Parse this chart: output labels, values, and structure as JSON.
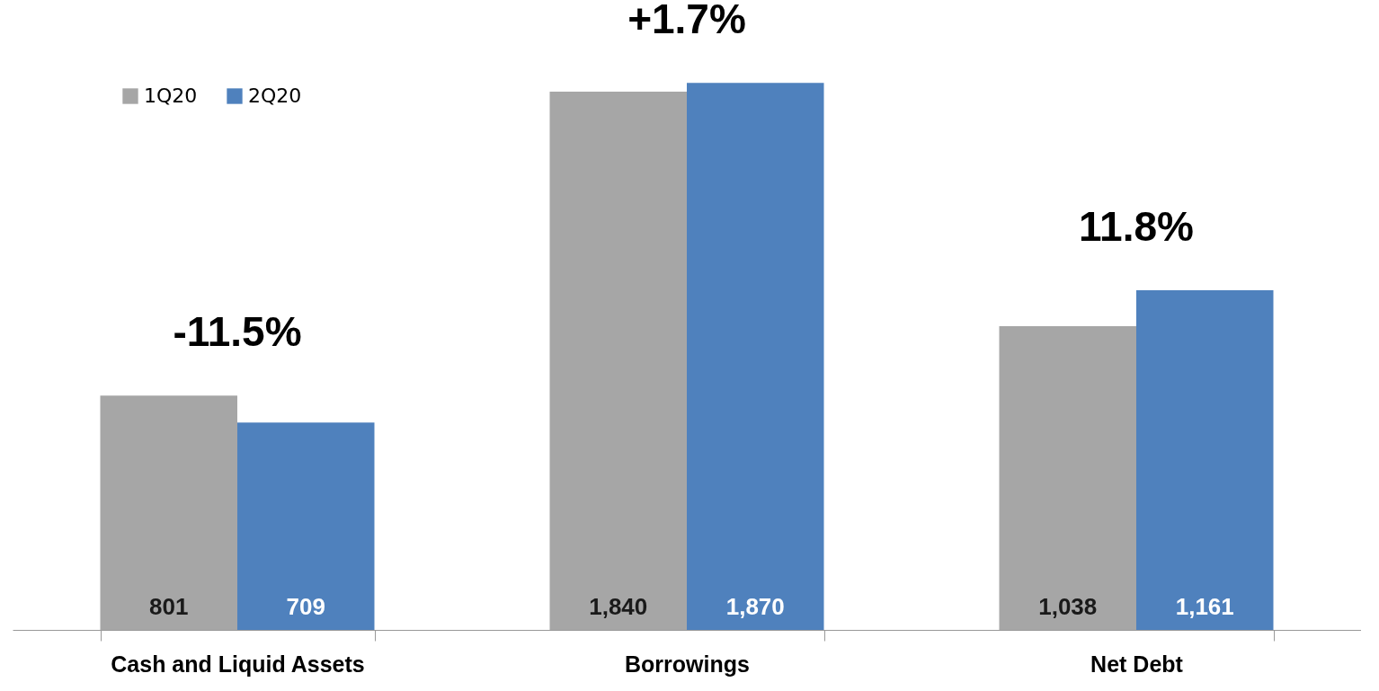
{
  "chart_data": {
    "type": "bar",
    "categories": [
      "Cash and Liquid Assets",
      "Borrowings",
      "Net Debt"
    ],
    "series": [
      {
        "name": "1Q20",
        "color": "#a6a6a6",
        "values": [
          801,
          1840,
          1038
        ],
        "value_labels": [
          "801",
          "1,840",
          "1,038"
        ]
      },
      {
        "name": "2Q20",
        "color": "#4f81bd",
        "values": [
          709,
          1870,
          1161
        ],
        "value_labels": [
          "709",
          "1,870",
          "1,161"
        ]
      }
    ],
    "ylim": [
      0,
      2150
    ],
    "tick_labels": "x",
    "legend": "top left",
    "grid": false,
    "annotations": [
      "-11.5%",
      "+1.7%",
      "11.8%"
    ]
  }
}
